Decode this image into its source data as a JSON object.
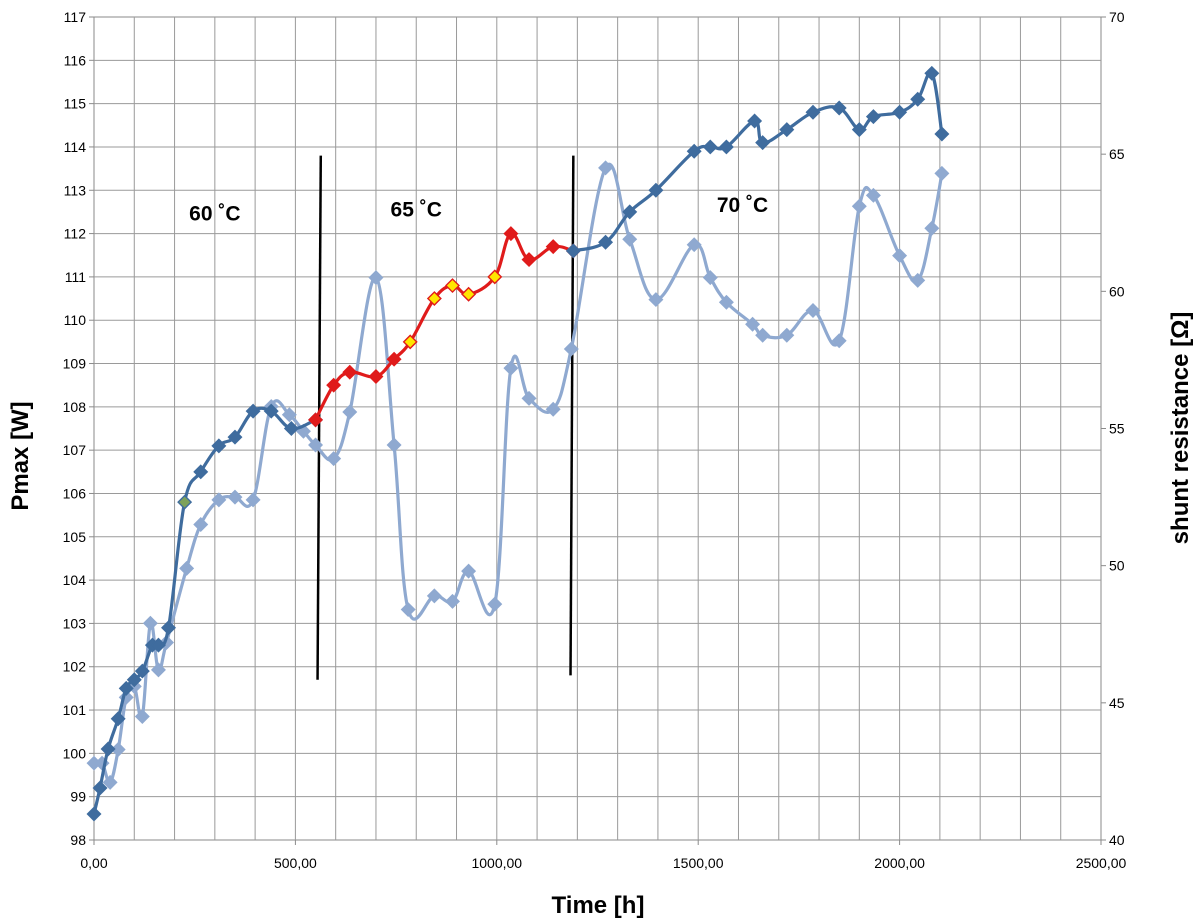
{
  "chart_data": {
    "type": "line",
    "xlabel": "Time [h]",
    "ylabel": "Pmax [W]",
    "y2label": "shunt resistance [Ω]",
    "xlim": [
      0,
      2500
    ],
    "ylim": [
      98,
      117
    ],
    "y2lim": [
      40,
      70
    ],
    "x_ticks": [
      "0,00",
      "500,00",
      "1000,00",
      "1500,00",
      "2000,00",
      "2500,00"
    ],
    "grid": true,
    "legend": "none",
    "annotations": [
      {
        "text": "60 ˚C",
        "x": 300,
        "y": 112.3
      },
      {
        "text": "65 ˚C",
        "x": 800,
        "y": 112.4
      },
      {
        "text": "70 ˚C",
        "x": 1610,
        "y": 112.5
      }
    ],
    "divider_lines": [
      {
        "x1": 563,
        "y1": 113.8,
        "x2": 555,
        "y2": 101.7
      },
      {
        "x1": 1190,
        "y1": 113.8,
        "x2": 1183,
        "y2": 101.8
      }
    ],
    "series": [
      {
        "axis": "right",
        "color": "#8fa9d0",
        "points": [
          [
            0,
            42.8
          ],
          [
            20,
            42.8
          ],
          [
            40,
            42.1
          ],
          [
            60,
            43.3
          ],
          [
            80,
            45.2
          ],
          [
            100,
            45.6
          ],
          [
            120,
            44.5
          ],
          [
            140,
            47.9
          ],
          [
            160,
            46.2
          ],
          [
            180,
            47.2
          ],
          [
            230,
            49.9
          ],
          [
            265,
            51.5
          ],
          [
            310,
            52.4
          ],
          [
            350,
            52.5
          ],
          [
            395,
            52.4
          ],
          [
            440,
            55.8
          ],
          [
            485,
            55.5
          ],
          [
            520,
            54.9
          ],
          [
            550,
            54.4
          ],
          [
            595,
            53.9
          ],
          [
            635,
            55.6
          ],
          [
            700,
            60.5
          ],
          [
            745,
            54.4
          ],
          [
            780,
            48.4
          ],
          [
            845,
            48.9
          ],
          [
            890,
            48.7
          ],
          [
            930,
            49.8
          ],
          [
            995,
            48.6
          ],
          [
            1035,
            57.2
          ],
          [
            1080,
            56.1
          ],
          [
            1140,
            55.7
          ],
          [
            1185,
            57.9
          ],
          [
            1270,
            64.5
          ],
          [
            1330,
            61.9
          ],
          [
            1395,
            59.7
          ],
          [
            1490,
            61.7
          ],
          [
            1530,
            60.5
          ],
          [
            1570,
            59.6
          ],
          [
            1635,
            58.8
          ],
          [
            1660,
            58.4
          ],
          [
            1720,
            58.4
          ],
          [
            1785,
            59.3
          ],
          [
            1850,
            58.2
          ],
          [
            1900,
            63.1
          ],
          [
            1935,
            63.5
          ],
          [
            2000,
            61.3
          ],
          [
            2045,
            60.4
          ],
          [
            2080,
            62.3
          ],
          [
            2105,
            64.3
          ]
        ]
      },
      {
        "axis": "left",
        "color": "#3f6c9e",
        "points": [
          [
            0,
            98.6
          ],
          [
            15,
            99.2
          ],
          [
            35,
            100.1
          ],
          [
            60,
            100.8
          ],
          [
            80,
            101.5
          ],
          [
            100,
            101.7
          ],
          [
            120,
            101.9
          ],
          [
            145,
            102.5
          ],
          [
            160,
            102.5
          ],
          [
            185,
            102.9
          ],
          [
            225,
            105.8
          ],
          [
            265,
            106.5
          ],
          [
            310,
            107.1
          ],
          [
            350,
            107.3
          ],
          [
            395,
            107.9
          ],
          [
            440,
            107.9
          ],
          [
            490,
            107.5
          ],
          [
            550,
            107.7
          ]
        ]
      },
      {
        "axis": "left",
        "color": "#e01b1b",
        "points": [
          [
            550,
            107.7
          ],
          [
            595,
            108.5
          ],
          [
            635,
            108.8
          ],
          [
            700,
            108.7
          ],
          [
            745,
            109.1
          ],
          [
            785,
            109.5
          ],
          [
            845,
            110.5
          ],
          [
            890,
            110.8
          ],
          [
            930,
            110.6
          ],
          [
            995,
            111.0
          ],
          [
            1035,
            112.0
          ],
          [
            1080,
            111.4
          ],
          [
            1140,
            111.7
          ],
          [
            1190,
            111.6
          ]
        ]
      },
      {
        "axis": "left",
        "color": "#3f6c9e",
        "points": [
          [
            1190,
            111.6
          ],
          [
            1270,
            111.8
          ],
          [
            1330,
            112.5
          ],
          [
            1395,
            113.0
          ],
          [
            1490,
            113.9
          ],
          [
            1530,
            114.0
          ],
          [
            1570,
            114.0
          ],
          [
            1640,
            114.6
          ],
          [
            1660,
            114.1
          ],
          [
            1720,
            114.4
          ],
          [
            1785,
            114.8
          ],
          [
            1850,
            114.9
          ],
          [
            1900,
            114.4
          ],
          [
            1935,
            114.7
          ],
          [
            2000,
            114.8
          ],
          [
            2045,
            115.1
          ],
          [
            2080,
            115.7
          ],
          [
            2105,
            114.3
          ]
        ]
      }
    ],
    "marker_overrides": [
      {
        "x": 225,
        "y": 105.8,
        "axis": "left",
        "color": "#7da25a"
      },
      {
        "x": 785,
        "y": 109.5,
        "axis": "left",
        "color": "#ffe600"
      },
      {
        "x": 845,
        "y": 110.5,
        "axis": "left",
        "color": "#ffe600"
      },
      {
        "x": 890,
        "y": 110.8,
        "axis": "left",
        "color": "#ffe600"
      },
      {
        "x": 930,
        "y": 110.6,
        "axis": "left",
        "color": "#ffe600"
      },
      {
        "x": 995,
        "y": 111.0,
        "axis": "left",
        "color": "#ffe600"
      }
    ]
  }
}
